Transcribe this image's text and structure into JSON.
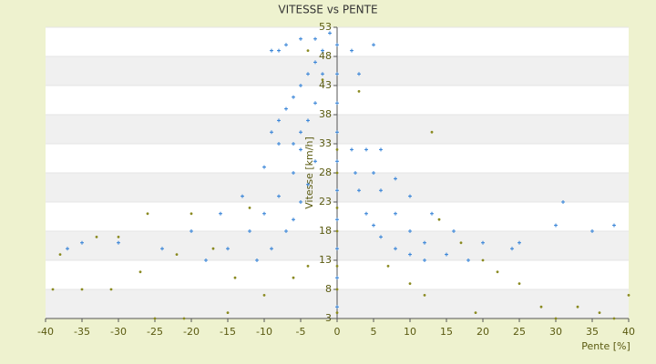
{
  "chart_data": {
    "type": "scatter",
    "title": "VITESSE vs PENTE",
    "x_label": "Pente [%]",
    "y_label": "Vitesse [km/h]",
    "xlim": [
      -40,
      40
    ],
    "ylim": [
      3,
      53
    ],
    "xticks": [
      -40,
      -35,
      -30,
      -25,
      -20,
      -15,
      -10,
      -5,
      0,
      5,
      10,
      15,
      20,
      25,
      30,
      35,
      40
    ],
    "yticks": [
      3,
      8,
      13,
      18,
      23,
      28,
      33,
      38,
      43,
      48,
      53
    ],
    "grid": true,
    "series": [
      {
        "color": "#2f7fd6",
        "marker": "+",
        "x": [
          2,
          2.5,
          3,
          4,
          5,
          6,
          8,
          10,
          12,
          4,
          5,
          6,
          8,
          10,
          12,
          15,
          18,
          6,
          8,
          10,
          13,
          16,
          20,
          24,
          -3,
          -4,
          -5,
          -6,
          -7,
          -9,
          -11,
          -5,
          -6,
          -8,
          -10,
          -12,
          -15,
          -18,
          -8,
          -10,
          -13,
          -16,
          -20,
          -24,
          -2,
          -3,
          -4,
          -5,
          -6,
          -7,
          -8,
          -9,
          -1,
          -2,
          -3,
          -4,
          -5,
          -6,
          -9,
          -8,
          -7,
          -5,
          -3,
          2,
          3,
          5,
          0,
          0,
          0,
          0,
          0,
          0,
          0,
          0,
          0,
          0,
          30,
          35,
          38,
          25,
          -30,
          -35,
          31,
          -37
        ],
        "y": [
          32,
          28,
          25,
          21,
          19,
          17,
          15,
          14,
          13,
          32,
          28,
          25,
          21,
          18,
          16,
          14,
          13,
          32,
          27,
          24,
          21,
          18,
          16,
          15,
          30,
          26,
          23,
          20,
          18,
          15,
          13,
          32,
          28,
          24,
          21,
          18,
          15,
          13,
          33,
          29,
          24,
          21,
          18,
          15,
          49,
          47,
          45,
          43,
          41,
          39,
          37,
          35,
          52,
          45,
          40,
          37,
          35,
          33,
          49,
          49,
          50,
          51,
          51,
          49,
          45,
          50,
          5,
          10,
          15,
          20,
          25,
          30,
          35,
          40,
          45,
          50,
          19,
          18,
          19,
          16,
          16,
          16,
          23,
          15
        ]
      },
      {
        "color": "#8a8a20",
        "marker": "dot",
        "x": [
          -39,
          -35,
          -31,
          -25,
          -21,
          -15,
          -10,
          -6,
          -4,
          -27,
          -22,
          -30,
          -26,
          -20,
          -17,
          -33,
          13,
          17,
          20,
          22,
          25,
          28,
          30,
          33,
          36,
          38,
          40,
          19,
          -38,
          0,
          0,
          0,
          0,
          0,
          0,
          0,
          3,
          -2,
          -4,
          7,
          10,
          12,
          14,
          -12,
          -14
        ],
        "y": [
          8,
          8,
          8,
          3,
          3,
          4,
          7,
          10,
          12,
          11,
          14,
          17,
          21,
          21,
          15,
          17,
          35,
          16,
          13,
          11,
          9,
          5,
          3,
          5,
          4,
          3,
          7,
          4,
          14,
          4,
          8,
          12,
          18,
          22,
          28,
          32,
          42,
          44,
          49,
          12,
          9,
          7,
          20,
          22,
          10
        ]
      }
    ]
  }
}
